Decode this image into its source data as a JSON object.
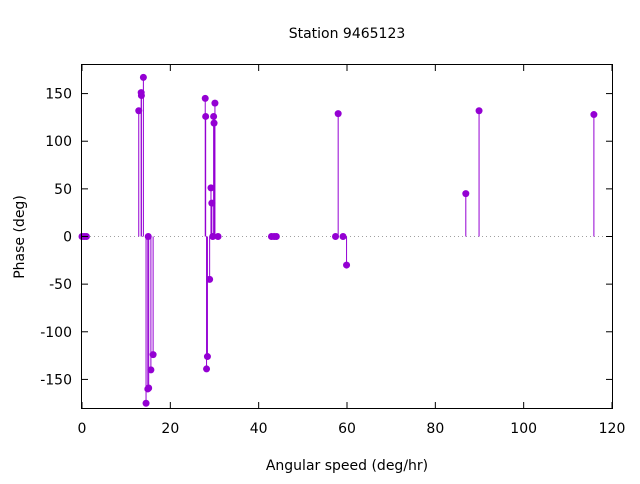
{
  "chart_data": {
    "type": "scatter",
    "style": "impulses-with-points",
    "title": "Station 9465123",
    "xlabel": "Angular speed (deg/hr)",
    "ylabel": "Phase (deg)",
    "xlim": [
      0,
      120
    ],
    "ylim": [
      -180,
      180
    ],
    "xticks": [
      0,
      20,
      40,
      60,
      80,
      100,
      120
    ],
    "yticks": [
      -150,
      -100,
      -50,
      0,
      50,
      100,
      150
    ],
    "zero_line": "dotted",
    "grid": false,
    "legend": "none",
    "colors": {
      "series": "#9400d3",
      "axis": "#000000",
      "zero_line": "#a0a0a0"
    },
    "series": [
      {
        "points": [
          [
            0.0,
            0
          ],
          [
            0.5,
            0
          ],
          [
            1.0,
            0
          ],
          [
            12.85,
            132
          ],
          [
            13.4,
            151
          ],
          [
            13.45,
            148
          ],
          [
            13.9,
            167
          ],
          [
            14.5,
            -175
          ],
          [
            14.9,
            -160
          ],
          [
            15.0,
            0
          ],
          [
            15.1,
            -159
          ],
          [
            15.6,
            -140
          ],
          [
            16.1,
            -124
          ],
          [
            27.9,
            145
          ],
          [
            28.0,
            126
          ],
          [
            28.2,
            -139
          ],
          [
            28.4,
            -126
          ],
          [
            28.9,
            -45
          ],
          [
            29.2,
            51
          ],
          [
            29.4,
            35
          ],
          [
            29.6,
            0
          ],
          [
            29.8,
            126
          ],
          [
            29.9,
            119
          ],
          [
            30.1,
            140
          ],
          [
            30.8,
            0
          ],
          [
            42.9,
            0
          ],
          [
            43.5,
            0
          ],
          [
            44.0,
            0
          ],
          [
            57.4,
            0
          ],
          [
            58.0,
            129
          ],
          [
            59.1,
            0
          ],
          [
            59.9,
            -30
          ],
          [
            86.9,
            45
          ],
          [
            89.9,
            132
          ],
          [
            115.9,
            128
          ]
        ]
      }
    ]
  }
}
